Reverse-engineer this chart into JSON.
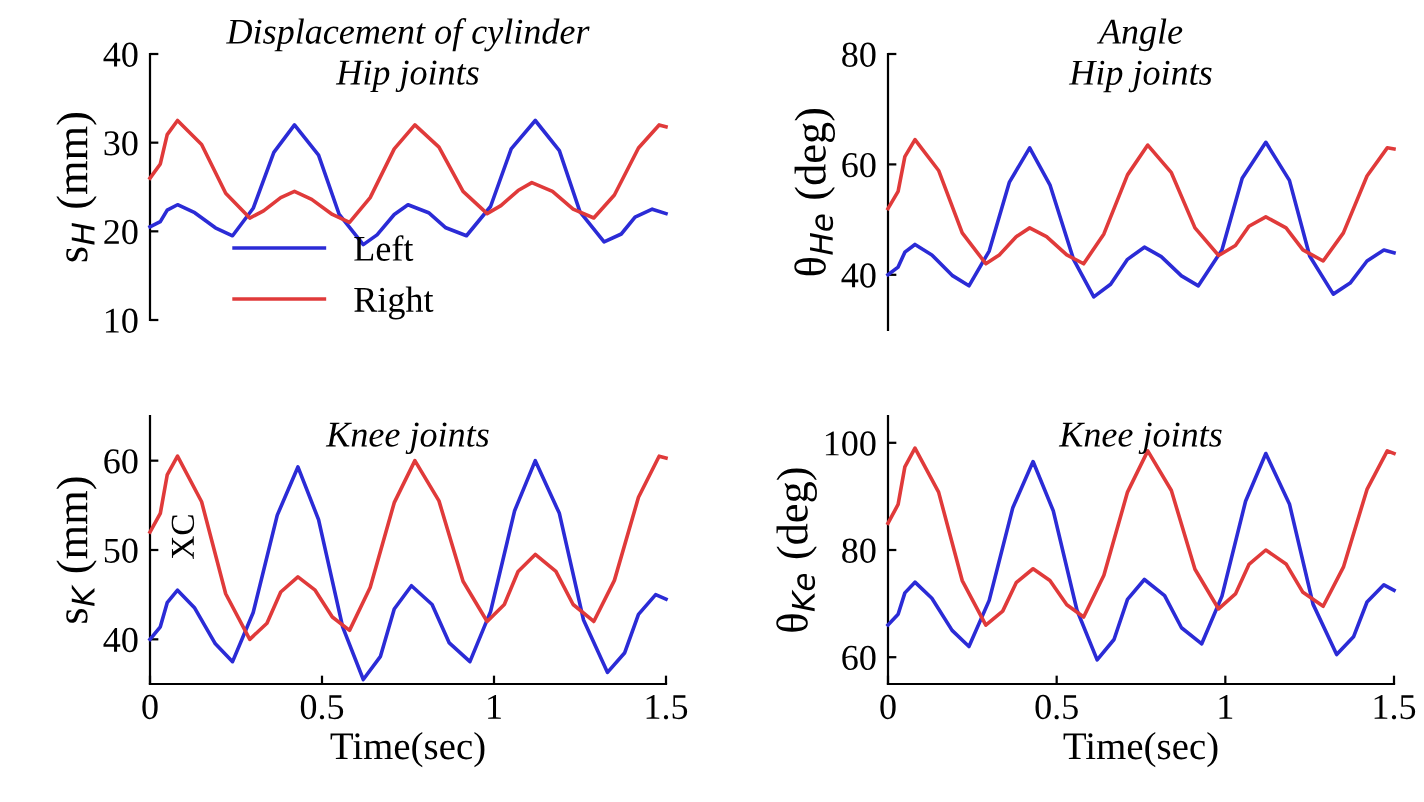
{
  "chart_data": [
    {
      "type": "line",
      "title": "Displacement of cylinder",
      "subtitle": "Hip joints",
      "ylabel": "s$_{H}$ (mm)",
      "xlim": [
        0,
        1.5
      ],
      "ylim": [
        10,
        40
      ],
      "yticks": [
        10,
        20,
        30,
        40
      ],
      "tick_labels": "y",
      "legend": "bottom left",
      "series": [
        {
          "name": "Left",
          "color": "#2b2bd6",
          "x": [
            0,
            0.03,
            0.05,
            0.08,
            0.13,
            0.19,
            0.24,
            0.3,
            0.36,
            0.42,
            0.49,
            0.55,
            0.62,
            0.66,
            0.71,
            0.75,
            0.81,
            0.86,
            0.92,
            0.99,
            1.05,
            1.12,
            1.19,
            1.25,
            1.32,
            1.37,
            1.41,
            1.46,
            1.5
          ],
          "values": [
            20.5,
            21.1,
            22.4,
            23,
            22.1,
            20.4,
            19.5,
            22.6,
            28.9,
            32,
            28.6,
            21.9,
            18.5,
            19.6,
            21.9,
            23,
            22.1,
            20.4,
            19.5,
            22.8,
            29.3,
            32.5,
            29.1,
            22.2,
            18.8,
            19.7,
            21.6,
            22.5,
            22
          ]
        },
        {
          "name": "Right",
          "color": "#e03a3a",
          "x": [
            0,
            0.03,
            0.05,
            0.08,
            0.15,
            0.22,
            0.29,
            0.33,
            0.38,
            0.42,
            0.47,
            0.53,
            0.58,
            0.64,
            0.71,
            0.77,
            0.84,
            0.91,
            0.98,
            1.02,
            1.07,
            1.11,
            1.17,
            1.23,
            1.29,
            1.35,
            1.42,
            1.48,
            1.5
          ],
          "values": [
            26,
            27.6,
            30.9,
            32.5,
            29.8,
            24.3,
            21.5,
            22.3,
            23.8,
            24.5,
            23.6,
            21.9,
            21,
            23.8,
            29.3,
            32,
            29.5,
            24.5,
            22,
            22.9,
            24.6,
            25.5,
            24.5,
            22.5,
            21.5,
            24.1,
            29.4,
            32,
            31.8
          ]
        }
      ]
    },
    {
      "type": "line",
      "title": "Angle",
      "subtitle": "Hip joints",
      "ylabel": "θ$_{He}$ (deg)",
      "xlim": [
        0,
        1.5
      ],
      "ylim": [
        30,
        80
      ],
      "yticks": [
        40,
        60,
        80
      ],
      "tick_labels": "y",
      "series": [
        {
          "color": "#2b2bd6",
          "x": [
            0,
            0.03,
            0.05,
            0.08,
            0.13,
            0.19,
            0.24,
            0.3,
            0.36,
            0.42,
            0.48,
            0.55,
            0.61,
            0.66,
            0.71,
            0.76,
            0.81,
            0.87,
            0.92,
            0.99,
            1.05,
            1.12,
            1.19,
            1.25,
            1.32,
            1.37,
            1.42,
            1.47,
            1.5
          ],
          "values": [
            40,
            41.4,
            44.1,
            45.5,
            43.6,
            39.9,
            38,
            44.3,
            56.8,
            63,
            56.3,
            42.8,
            36,
            38.3,
            42.8,
            45,
            43.3,
            39.8,
            38,
            44.5,
            57.5,
            64,
            57.1,
            43.4,
            36.5,
            38.5,
            42.5,
            44.5,
            44
          ]
        },
        {
          "color": "#e03a3a",
          "x": [
            0,
            0.03,
            0.05,
            0.08,
            0.15,
            0.22,
            0.29,
            0.33,
            0.38,
            0.42,
            0.47,
            0.53,
            0.58,
            0.64,
            0.71,
            0.77,
            0.84,
            0.91,
            0.98,
            1.03,
            1.07,
            1.12,
            1.18,
            1.23,
            1.29,
            1.35,
            1.42,
            1.48,
            1.5
          ],
          "values": [
            52,
            55.1,
            61.4,
            64.5,
            58.9,
            47.6,
            42,
            43.6,
            46.9,
            48.5,
            46.9,
            43.6,
            42,
            47.4,
            58.1,
            63.5,
            58.5,
            48.5,
            43.5,
            45.3,
            48.8,
            50.5,
            48.5,
            44.5,
            42.5,
            47.6,
            57.9,
            63,
            62.8
          ]
        }
      ]
    },
    {
      "type": "line",
      "title": "Knee joints",
      "ylabel": "s$_{K}$ (mm)",
      "xlabel": "Time(sec)",
      "xlim": [
        0,
        1.5
      ],
      "xticks": [
        0,
        0.5,
        1,
        1.5
      ],
      "ylim": [
        35,
        65
      ],
      "yticks": [
        40,
        50,
        60
      ],
      "annotations": [
        "XC"
      ],
      "series": [
        {
          "color": "#2b2bd6",
          "x": [
            0,
            0.03,
            0.05,
            0.08,
            0.13,
            0.19,
            0.24,
            0.3,
            0.37,
            0.43,
            0.49,
            0.56,
            0.62,
            0.67,
            0.71,
            0.76,
            0.82,
            0.87,
            0.93,
            0.99,
            1.06,
            1.12,
            1.19,
            1.26,
            1.33,
            1.38,
            1.42,
            1.47,
            1.5
          ],
          "values": [
            40,
            41.4,
            44.1,
            45.5,
            43.5,
            39.5,
            37.5,
            43,
            53.9,
            59.3,
            53.4,
            41.4,
            35.5,
            38.1,
            43.4,
            46,
            43.9,
            39.6,
            37.5,
            43.1,
            54.4,
            60,
            54.1,
            42.2,
            36.3,
            38.5,
            42.8,
            45,
            44.5
          ]
        },
        {
          "color": "#e03a3a",
          "x": [
            0,
            0.03,
            0.05,
            0.08,
            0.15,
            0.22,
            0.29,
            0.34,
            0.38,
            0.43,
            0.48,
            0.53,
            0.58,
            0.64,
            0.71,
            0.77,
            0.84,
            0.91,
            0.98,
            1.03,
            1.07,
            1.12,
            1.18,
            1.23,
            1.29,
            1.35,
            1.42,
            1.48,
            1.5
          ],
          "values": [
            52,
            54.1,
            58.4,
            60.5,
            55.4,
            45.1,
            40,
            41.8,
            45.3,
            47,
            45.5,
            42.5,
            41,
            45.8,
            55.3,
            60,
            55.5,
            46.5,
            42,
            43.9,
            47.6,
            49.5,
            47.6,
            43.9,
            42,
            46.6,
            55.9,
            60.5,
            60.3
          ]
        }
      ]
    },
    {
      "type": "line",
      "title": "Knee joints",
      "ylabel": "θ$_{Ke}$ (deg)",
      "xlabel": "Time(sec)",
      "xlim": [
        0,
        1.5
      ],
      "xticks": [
        0,
        0.5,
        1,
        1.5
      ],
      "ylim": [
        55,
        105
      ],
      "yticks": [
        60,
        80,
        100
      ],
      "series": [
        {
          "color": "#2b2bd6",
          "x": [
            0,
            0.03,
            0.05,
            0.08,
            0.13,
            0.19,
            0.24,
            0.3,
            0.37,
            0.43,
            0.49,
            0.56,
            0.62,
            0.67,
            0.71,
            0.76,
            0.82,
            0.87,
            0.93,
            0.99,
            1.06,
            1.12,
            1.19,
            1.26,
            1.33,
            1.38,
            1.42,
            1.47,
            1.5
          ],
          "values": [
            66,
            68,
            72,
            74,
            71,
            65,
            62,
            70.6,
            87.9,
            96.5,
            87.3,
            68.8,
            59.5,
            63.3,
            70.8,
            74.5,
            71.5,
            65.5,
            62.5,
            71.4,
            89.1,
            98,
            88.6,
            69.9,
            60.5,
            63.8,
            70.3,
            73.5,
            72.5
          ]
        },
        {
          "color": "#e03a3a",
          "x": [
            0,
            0.03,
            0.05,
            0.08,
            0.15,
            0.22,
            0.29,
            0.34,
            0.38,
            0.43,
            0.48,
            0.53,
            0.58,
            0.64,
            0.71,
            0.77,
            0.84,
            0.91,
            0.98,
            1.03,
            1.07,
            1.12,
            1.18,
            1.23,
            1.29,
            1.35,
            1.42,
            1.48,
            1.5
          ],
          "values": [
            85,
            88.5,
            95.5,
            99,
            90.8,
            74.3,
            66,
            68.6,
            73.9,
            76.5,
            74.3,
            69.8,
            67.5,
            75.3,
            90.8,
            98.5,
            91.1,
            76.4,
            69,
            71.8,
            77.3,
            80,
            77.4,
            72.1,
            69.5,
            76.8,
            91.3,
            98.5,
            98
          ]
        }
      ]
    }
  ]
}
